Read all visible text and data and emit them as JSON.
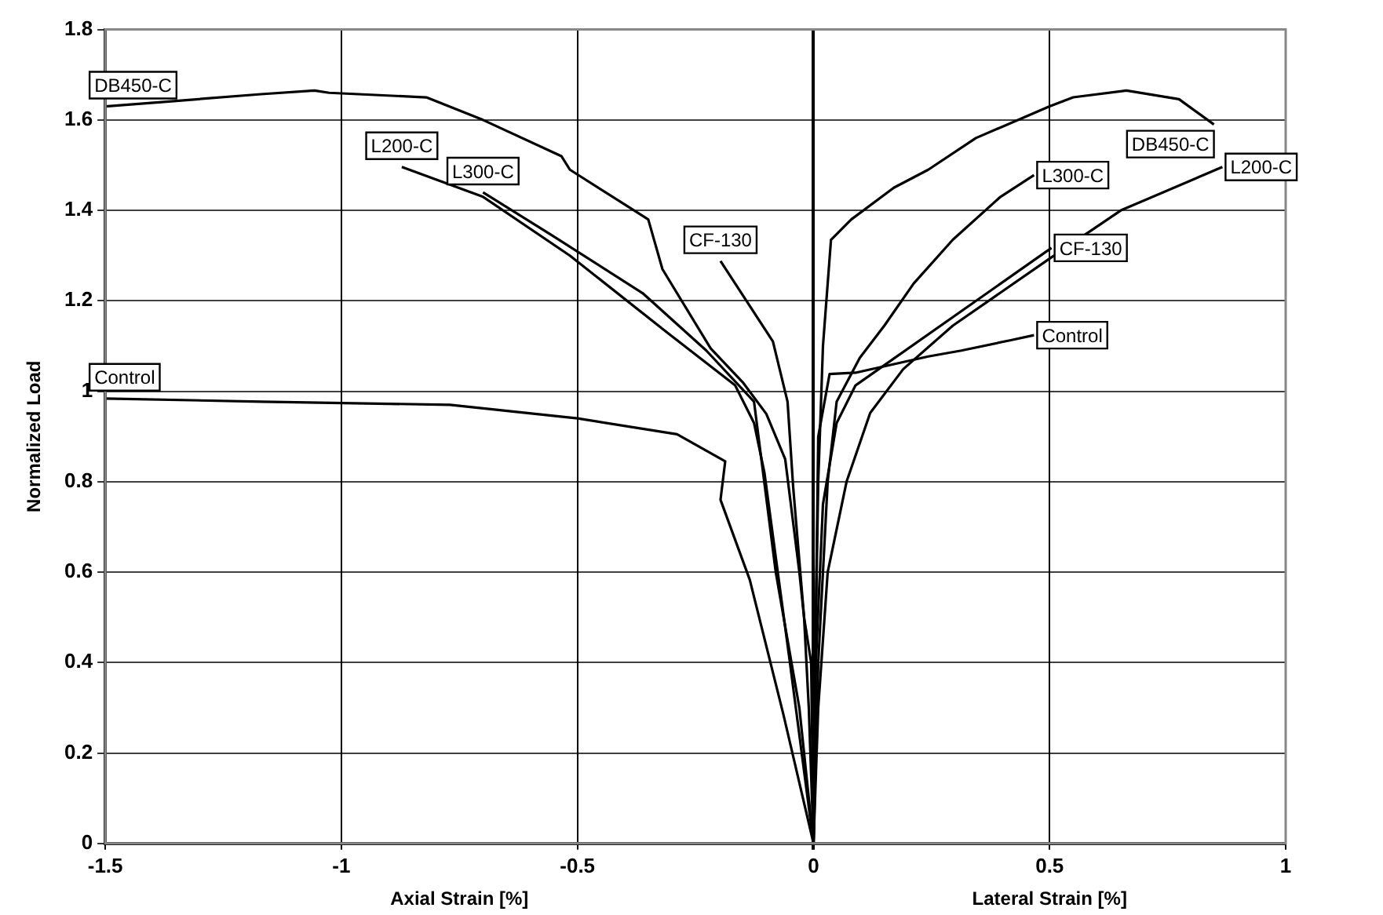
{
  "chart_data": {
    "type": "line",
    "xlabel": "Axial Strain [%]",
    "ylabel": "Normalized Load",
    "annotations": [
      "Lateral Strain [%]"
    ],
    "xlim": [
      -1.5,
      1
    ],
    "xticks": [
      -1.5,
      -1,
      -0.5,
      0,
      0.5,
      1
    ],
    "ylim": [
      0,
      1.8
    ],
    "yticks": [
      0,
      0.2,
      0.4,
      0.6,
      0.8,
      1,
      1.2,
      1.4,
      1.6,
      1.8
    ],
    "grid": true,
    "legend": false,
    "marker": "none",
    "line_style": "solid",
    "series": [
      {
        "name": "DB450-C",
        "color": "#000000",
        "x": [
          0,
          -0.005,
          -0.02,
          -0.03,
          -0.06,
          -0.1,
          -0.15,
          -0.218,
          -0.32,
          -0.35,
          -0.516,
          -0.534,
          -0.7,
          -0.82,
          -1.026,
          -1.057,
          -1.17,
          -1.376,
          -1.5
        ],
        "values": [
          0,
          0.4,
          0.5,
          0.6,
          0.85,
          0.95,
          1.02,
          1.095,
          1.27,
          1.38,
          1.49,
          1.52,
          1.6,
          1.65,
          1.66,
          1.665,
          1.657,
          1.64,
          1.63
        ]
      },
      {
        "name": "DB450-C",
        "color": "#000000",
        "x": [
          0,
          0.005,
          0.01,
          0.02,
          0.037,
          0.08,
          0.17,
          0.243,
          0.344,
          0.5,
          0.55,
          0.663,
          0.774,
          0.848
        ],
        "values": [
          0,
          0.5,
          0.8,
          1.1,
          1.335,
          1.38,
          1.45,
          1.49,
          1.56,
          1.63,
          1.65,
          1.665,
          1.646,
          1.59
        ]
      },
      {
        "name": "L200-C",
        "color": "#000000",
        "x": [
          0,
          -0.05,
          -0.104,
          -0.126,
          -0.166,
          -0.31,
          -0.516,
          -0.7,
          -0.872
        ],
        "values": [
          0,
          0.4,
          0.82,
          0.93,
          1.013,
          1.13,
          1.3,
          1.43,
          1.496
        ]
      },
      {
        "name": "L200-C",
        "color": "#000000",
        "x": [
          0,
          0.01,
          0.03,
          0.07,
          0.12,
          0.19,
          0.295,
          0.498,
          0.651,
          0.866
        ],
        "values": [
          0,
          0.3,
          0.6,
          0.8,
          0.952,
          1.049,
          1.145,
          1.292,
          1.4,
          1.496
        ]
      },
      {
        "name": "L300-C",
        "color": "#000000",
        "x": [
          0,
          -0.03,
          -0.08,
          -0.126,
          -0.227,
          -0.362,
          -0.556,
          -0.7
        ],
        "values": [
          0,
          0.3,
          0.6,
          0.977,
          1.09,
          1.217,
          1.346,
          1.44
        ]
      },
      {
        "name": "L300-C",
        "color": "#000000",
        "x": [
          0,
          0.01,
          0.03,
          0.049,
          0.098,
          0.15,
          0.212,
          0.295,
          0.396,
          0.467
        ],
        "values": [
          0,
          0.4,
          0.8,
          0.977,
          1.074,
          1.145,
          1.238,
          1.335,
          1.43,
          1.478
        ]
      },
      {
        "name": "CF-130",
        "color": "#000000",
        "x": [
          0,
          -0.01,
          -0.02,
          -0.043,
          -0.055,
          -0.086,
          -0.197
        ],
        "values": [
          0,
          0.3,
          0.5,
          0.787,
          0.977,
          1.11,
          1.288
        ]
      },
      {
        "name": "CF-130",
        "color": "#000000",
        "x": [
          0,
          0.005,
          0.02,
          0.049,
          0.089,
          0.504
        ],
        "values": [
          0,
          0.4,
          0.75,
          0.93,
          1.013,
          1.317
        ]
      },
      {
        "name": "Control",
        "color": "#000000",
        "x": [
          0,
          -0.064,
          -0.135,
          -0.197,
          -0.187,
          -0.289,
          -0.5,
          -0.77,
          -1.17,
          -1.5
        ],
        "values": [
          0,
          0.286,
          0.583,
          0.76,
          0.845,
          0.905,
          0.94,
          0.97,
          0.977,
          0.984
        ]
      },
      {
        "name": "Control",
        "color": "#000000",
        "x": [
          0,
          0.005,
          0.01,
          0.034,
          0.089,
          0.243,
          0.313,
          0.418,
          0.467
        ],
        "values": [
          0,
          0.5,
          0.9,
          1.038,
          1.041,
          1.077,
          1.09,
          1.113,
          1.124
        ]
      }
    ]
  }
}
